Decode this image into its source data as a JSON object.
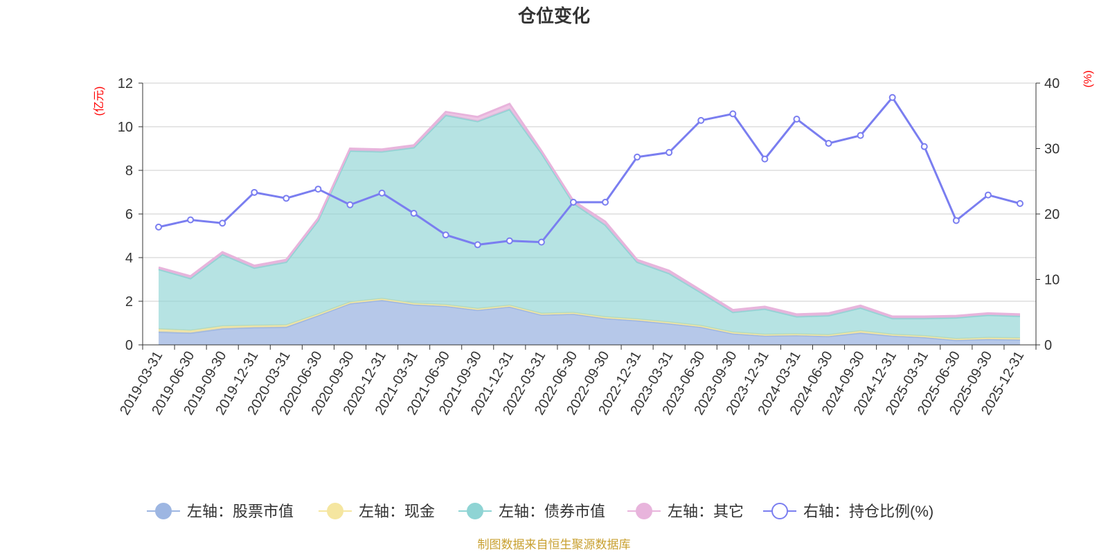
{
  "chart_data": {
    "type": "area",
    "title": "仓位变化",
    "y_left_unit": "(亿元)",
    "y_right_unit": "(%)",
    "ylim_left": [
      0,
      12
    ],
    "ylim_right": [
      0,
      40
    ],
    "y_left_ticks": [
      0,
      2,
      4,
      6,
      8,
      10,
      12
    ],
    "y_right_ticks": [
      0,
      10,
      20,
      30,
      40
    ],
    "categories": [
      "2019-03-31",
      "2019-06-30",
      "2019-09-30",
      "2019-12-31",
      "2020-03-31",
      "2020-06-30",
      "2020-09-30",
      "2020-12-31",
      "2021-03-31",
      "2021-06-30",
      "2021-09-30",
      "2021-12-31",
      "2022-03-31",
      "2022-06-30",
      "2022-09-30",
      "2022-12-31",
      "2023-03-31",
      "2023-06-30",
      "2023-09-30",
      "2023-12-31",
      "2024-03-31",
      "2024-06-30",
      "2024-09-30",
      "2024-12-31",
      "2025-03-31",
      "2025-06-30",
      "2025-09-30",
      "2025-12-31"
    ],
    "series": [
      {
        "name": "左轴：股票市值",
        "axis": "left",
        "kind": "area",
        "color": "#9db6e2",
        "values": [
          0.6,
          0.55,
          0.75,
          0.8,
          0.82,
          1.35,
          1.9,
          2.05,
          1.85,
          1.78,
          1.6,
          1.75,
          1.38,
          1.42,
          1.22,
          1.12,
          0.98,
          0.82,
          0.52,
          0.42,
          0.44,
          0.4,
          0.55,
          0.42,
          0.35,
          0.22,
          0.26,
          0.24
        ]
      },
      {
        "name": "左轴：现金",
        "axis": "left",
        "kind": "area",
        "color": "#f5e6a0",
        "values": [
          0.12,
          0.1,
          0.1,
          0.08,
          0.08,
          0.05,
          0.05,
          0.06,
          0.05,
          0.05,
          0.05,
          0.05,
          0.05,
          0.05,
          0.05,
          0.05,
          0.05,
          0.05,
          0.05,
          0.05,
          0.05,
          0.05,
          0.08,
          0.05,
          0.05,
          0.05,
          0.06,
          0.06
        ]
      },
      {
        "name": "左轴：债券市值",
        "axis": "left",
        "kind": "area",
        "color": "#8fd4d4",
        "values": [
          2.75,
          2.4,
          3.3,
          2.65,
          2.9,
          4.3,
          6.95,
          6.75,
          7.15,
          8.7,
          8.6,
          9.0,
          7.36,
          5.03,
          4.23,
          2.63,
          2.25,
          1.53,
          0.93,
          1.18,
          0.81,
          0.9,
          1.07,
          0.75,
          0.82,
          0.98,
          1.05,
          1.02
        ]
      },
      {
        "name": "左轴：其它",
        "axis": "left",
        "kind": "area",
        "color": "#e8b4dc",
        "values": [
          0.08,
          0.1,
          0.1,
          0.1,
          0.1,
          0.1,
          0.1,
          0.1,
          0.1,
          0.15,
          0.2,
          0.25,
          0.1,
          0.1,
          0.15,
          0.1,
          0.12,
          0.1,
          0.1,
          0.1,
          0.1,
          0.1,
          0.1,
          0.08,
          0.08,
          0.08,
          0.08,
          0.08
        ]
      },
      {
        "name": "右轴：持仓比例(%)",
        "axis": "right",
        "kind": "line",
        "color": "#7a7ef0",
        "values": [
          18.0,
          19.1,
          18.6,
          23.3,
          22.4,
          23.8,
          21.4,
          23.2,
          20.1,
          16.8,
          15.3,
          15.9,
          15.7,
          21.8,
          21.8,
          28.7,
          29.4,
          34.3,
          35.3,
          28.4,
          34.5,
          30.8,
          32.0,
          37.8,
          30.3,
          19.0,
          22.9,
          21.6
        ]
      }
    ]
  },
  "source_note": "制图数据来自恒生聚源数据库",
  "colors": {
    "axis": "#333333",
    "grid": "#cccccc",
    "unit_red": "#ff0000",
    "source": "#c8a030",
    "stroke_stock": "#9db6e2",
    "stroke_cash": "#f5e6a0",
    "stroke_bond": "#8fd4d4",
    "stroke_other": "#e8b4dc"
  }
}
